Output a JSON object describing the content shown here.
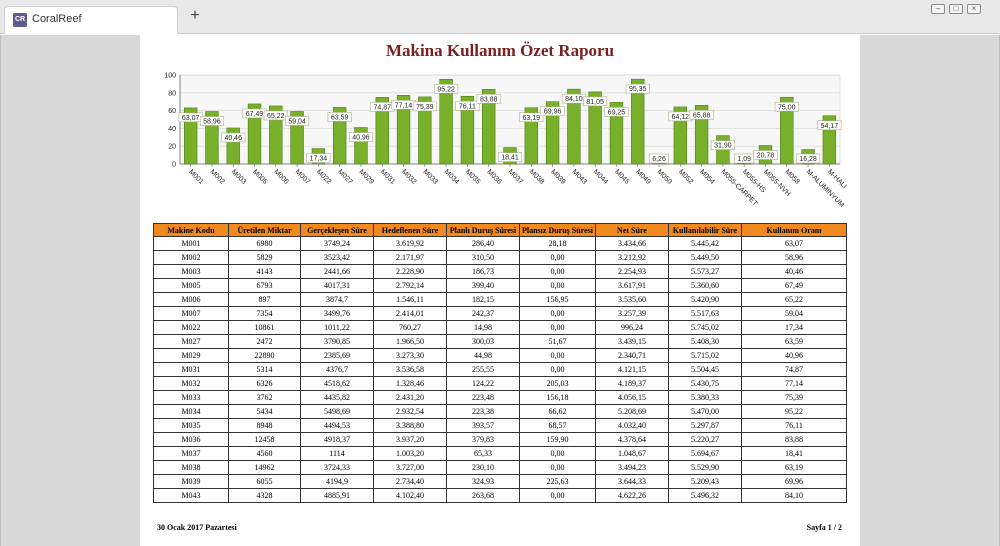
{
  "browser": {
    "tab_logo": "CR",
    "tab_title": "CoralReef",
    "new_tab": "+",
    "controls": [
      "minimize-icon",
      "restore-icon",
      "close-icon"
    ]
  },
  "report": {
    "title": "Makina Kullanım Özet Raporu",
    "footer_date": "30 Ocak 2017 Pazartesi",
    "footer_page": "Sayfa 1 / 2"
  },
  "chart_data": {
    "type": "bar",
    "categories": [
      "M001",
      "M002",
      "M003",
      "M005",
      "M006",
      "M007",
      "M022",
      "M027",
      "M029",
      "M031",
      "M032",
      "M033",
      "M034",
      "M035",
      "M036",
      "M037",
      "M038",
      "M039",
      "M043",
      "M044",
      "M045",
      "M049",
      "M050",
      "M052",
      "M054",
      "M055-CARPET",
      "M055-HS",
      "M055-NVH",
      "M058",
      "M-ALUMINYUM",
      "M-HALI"
    ],
    "values": [
      63.07,
      58.96,
      40.46,
      67.49,
      65.22,
      59.04,
      17.34,
      63.59,
      40.96,
      74.87,
      77.14,
      75.39,
      95.22,
      76.11,
      83.88,
      18.41,
      63.19,
      69.96,
      84.1,
      81.05,
      69.25,
      95.35,
      6.26,
      64.12,
      65.88,
      31.9,
      1.09,
      20.78,
      75.0,
      16.28,
      54.17
    ],
    "labels": [
      "63,07",
      "58,96",
      "40,46",
      "67,49",
      "65,22",
      "59,04",
      "17,34",
      "63,59",
      "40,96",
      "74,87",
      "77,14",
      "75,39",
      "95,22",
      "76,11",
      "83,88",
      "18,41",
      "63,19",
      "69,96",
      "84,10",
      "81,05",
      "69,25",
      "95,35",
      "6,26",
      "64,12",
      "65,88",
      "31,90",
      "1,09",
      "20,78",
      "75,00",
      "16,28",
      "54,17"
    ],
    "yticks": [
      "0",
      "20",
      "40",
      "60",
      "80",
      "100"
    ],
    "ylim": [
      0,
      100
    ],
    "title": "",
    "xlabel": "",
    "ylabel": "",
    "bar_color": "#78b02b",
    "grid": true
  },
  "table": {
    "headers": [
      "Makine Kodu",
      "Üretilen Miktar",
      "Gerçekleşen Süre",
      "Hedeflenen Süre",
      "Planlı Duruş Süresi",
      "Plansız Duruş Süresi",
      "Net Süre",
      "Kullanılabilir Süre",
      "Kullanım Oranı"
    ],
    "rows": [
      [
        "M001",
        "6980",
        "3749,24",
        "3.619,92",
        "286,40",
        "28,18",
        "3.434,66",
        "5.445,42",
        "63,07"
      ],
      [
        "M002",
        "5829",
        "3523,42",
        "2.171,97",
        "310,50",
        "0,00",
        "3.212,92",
        "5.449,50",
        "58,96"
      ],
      [
        "M003",
        "4143",
        "2441,66",
        "2.228,90",
        "186,73",
        "0,00",
        "2.254,93",
        "5.573,27",
        "40,46"
      ],
      [
        "M005",
        "6793",
        "4017,31",
        "2.792,14",
        "399,40",
        "0,00",
        "3.617,91",
        "5.360,60",
        "67,49"
      ],
      [
        "M006",
        "897",
        "3874,7",
        "1.546,11",
        "182,15",
        "156,95",
        "3.535,60",
        "5.420,90",
        "65,22"
      ],
      [
        "M007",
        "7354",
        "3499,76",
        "2.414,01",
        "242,37",
        "0,00",
        "3.257,39",
        "5.517,63",
        "59,04"
      ],
      [
        "M022",
        "10861",
        "1011,22",
        "760,27",
        "14,98",
        "0,00",
        "996,24",
        "5.745,02",
        "17,34"
      ],
      [
        "M027",
        "2472",
        "3790,85",
        "1.966,50",
        "300,03",
        "51,67",
        "3.439,15",
        "5.408,30",
        "63,59"
      ],
      [
        "M029",
        "22890",
        "2385,69",
        "3.273,30",
        "44,98",
        "0,00",
        "2.340,71",
        "5.715,02",
        "40,96"
      ],
      [
        "M031",
        "5314",
        "4376,7",
        "3.536,58",
        "255,55",
        "0,00",
        "4.121,15",
        "5.504,45",
        "74,87"
      ],
      [
        "M032",
        "6326",
        "4518,62",
        "1.328,46",
        "124,22",
        "205,03",
        "4.189,37",
        "5.430,75",
        "77,14"
      ],
      [
        "M033",
        "3762",
        "4435,82",
        "2.431,20",
        "223,48",
        "156,18",
        "4.056,15",
        "5.380,33",
        "75,39"
      ],
      [
        "M034",
        "5434",
        "5498,69",
        "2.932,54",
        "223,38",
        "66,62",
        "5.208,69",
        "5.470,00",
        "95,22"
      ],
      [
        "M035",
        "8948",
        "4494,53",
        "3.388,80",
        "393,57",
        "68,57",
        "4.032,40",
        "5.297,87",
        "76,11"
      ],
      [
        "M036",
        "12458",
        "4918,37",
        "3.937,20",
        "379,83",
        "159,90",
        "4.378,64",
        "5.220,27",
        "83,88"
      ],
      [
        "M037",
        "4560",
        "1114",
        "1.003,20",
        "65,33",
        "0,00",
        "1.048,67",
        "5.694,67",
        "18,41"
      ],
      [
        "M038",
        "14962",
        "3724,33",
        "3.727,00",
        "230,10",
        "0,00",
        "3.494,23",
        "5.529,90",
        "63,19"
      ],
      [
        "M039",
        "6055",
        "4194,9",
        "2.734,40",
        "324,93",
        "225,63",
        "3.644,33",
        "5.209,43",
        "69,96"
      ],
      [
        "M043",
        "4328",
        "4885,91",
        "4.102,40",
        "263,68",
        "0,00",
        "4.622,26",
        "5.496,32",
        "84,10"
      ]
    ]
  }
}
